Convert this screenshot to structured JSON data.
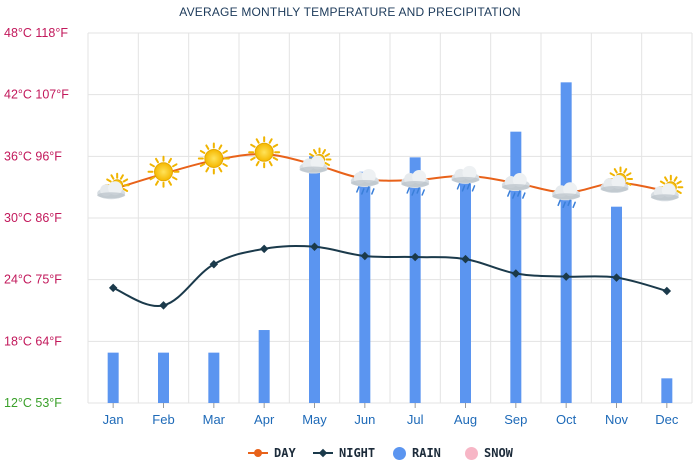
{
  "title": "AVERAGE MONTHLY TEMPERATURE AND PRECIPITATION",
  "colors": {
    "day": "#e8621a",
    "night": "#1b3a4b",
    "rain": "#5b95f0",
    "snow": "#f7b6c6",
    "grid": "#e3e3e3",
    "ytick_high": "#c2185b",
    "ytick_low": "#3aa02a"
  },
  "legend": {
    "day": "DAY",
    "night": "NIGHT",
    "rain": "RAIN",
    "snow": "SNOW"
  },
  "chart_data": {
    "type": "line",
    "title": "AVERAGE MONTHLY TEMPERATURE AND PRECIPITATION",
    "categories": [
      "Jan",
      "Feb",
      "Mar",
      "Apr",
      "May",
      "Jun",
      "Jul",
      "Aug",
      "Sep",
      "Oct",
      "Nov",
      "Dec"
    ],
    "y_axis": {
      "unit": "°C",
      "ylim": [
        12,
        48
      ],
      "ticks": [
        {
          "value": 48,
          "label": "48°C 118°F"
        },
        {
          "value": 42,
          "label": "42°C 107°F"
        },
        {
          "value": 36,
          "label": "36°C 96°F"
        },
        {
          "value": 30,
          "label": "30°C 86°F"
        },
        {
          "value": 24,
          "label": "24°C 75°F"
        },
        {
          "value": 18,
          "label": "18°C 64°F"
        },
        {
          "value": 12,
          "label": "12°C 53°F"
        }
      ]
    },
    "series": [
      {
        "name": "DAY",
        "kind": "line",
        "values": [
          32.8,
          34.3,
          35.6,
          36.2,
          35.2,
          33.8,
          33.7,
          34.1,
          33.4,
          32.5,
          33.4,
          32.6
        ]
      },
      {
        "name": "NIGHT",
        "kind": "line",
        "values": [
          23.2,
          21.5,
          25.5,
          27.0,
          27.2,
          26.3,
          26.2,
          26.0,
          24.6,
          24.3,
          24.2,
          22.9
        ]
      },
      {
        "name": "RAIN",
        "kind": "bar",
        "scale_ylim": [
          12,
          48
        ],
        "values": [
          16.9,
          16.9,
          16.9,
          19.1,
          36.0,
          34.5,
          35.9,
          33.8,
          38.4,
          43.2,
          31.1,
          14.4
        ]
      },
      {
        "name": "SNOW",
        "kind": "bar",
        "values": [
          0,
          0,
          0,
          0,
          0,
          0,
          0,
          0,
          0,
          0,
          0,
          0
        ]
      }
    ],
    "weather_icons": [
      "sun-cloud",
      "sun",
      "sun",
      "sun",
      "cloud-sun",
      "cloud-rain",
      "cloud-rain",
      "cloud-rain",
      "cloud-rain",
      "cloud-rain",
      "sun-cloud",
      "sun-cloud"
    ],
    "grid": true,
    "legend_position": "bottom-center"
  }
}
